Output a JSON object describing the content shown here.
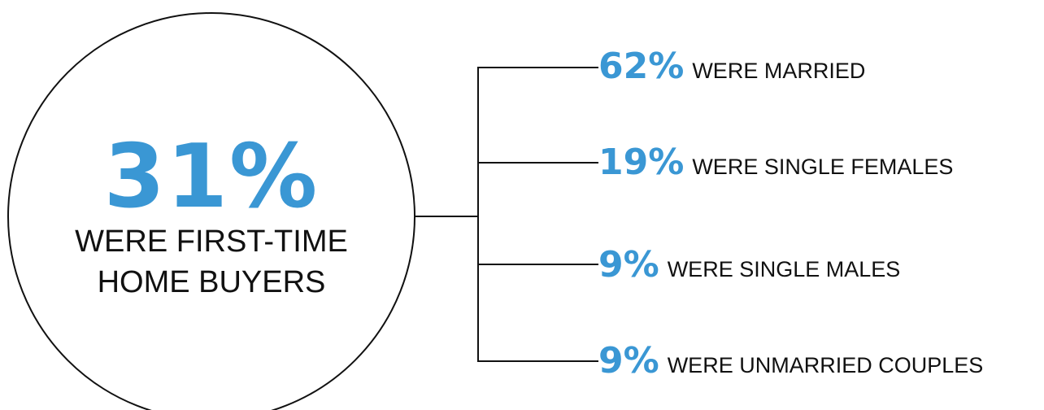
{
  "colors": {
    "accent": "#3a97d4",
    "line": "#111111",
    "text": "#111111"
  },
  "main": {
    "percent": "31%",
    "caption_line1": "WERE FIRST-TIME",
    "caption_line2": "HOME BUYERS"
  },
  "breakdown": [
    {
      "percent": "62%",
      "label": "WERE MARRIED"
    },
    {
      "percent": "19%",
      "label": "WERE SINGLE FEMALES"
    },
    {
      "percent": "9%",
      "label": "WERE SINGLE MALES"
    },
    {
      "percent": "9%",
      "label": "WERE UNMARRIED COUPLES"
    }
  ]
}
